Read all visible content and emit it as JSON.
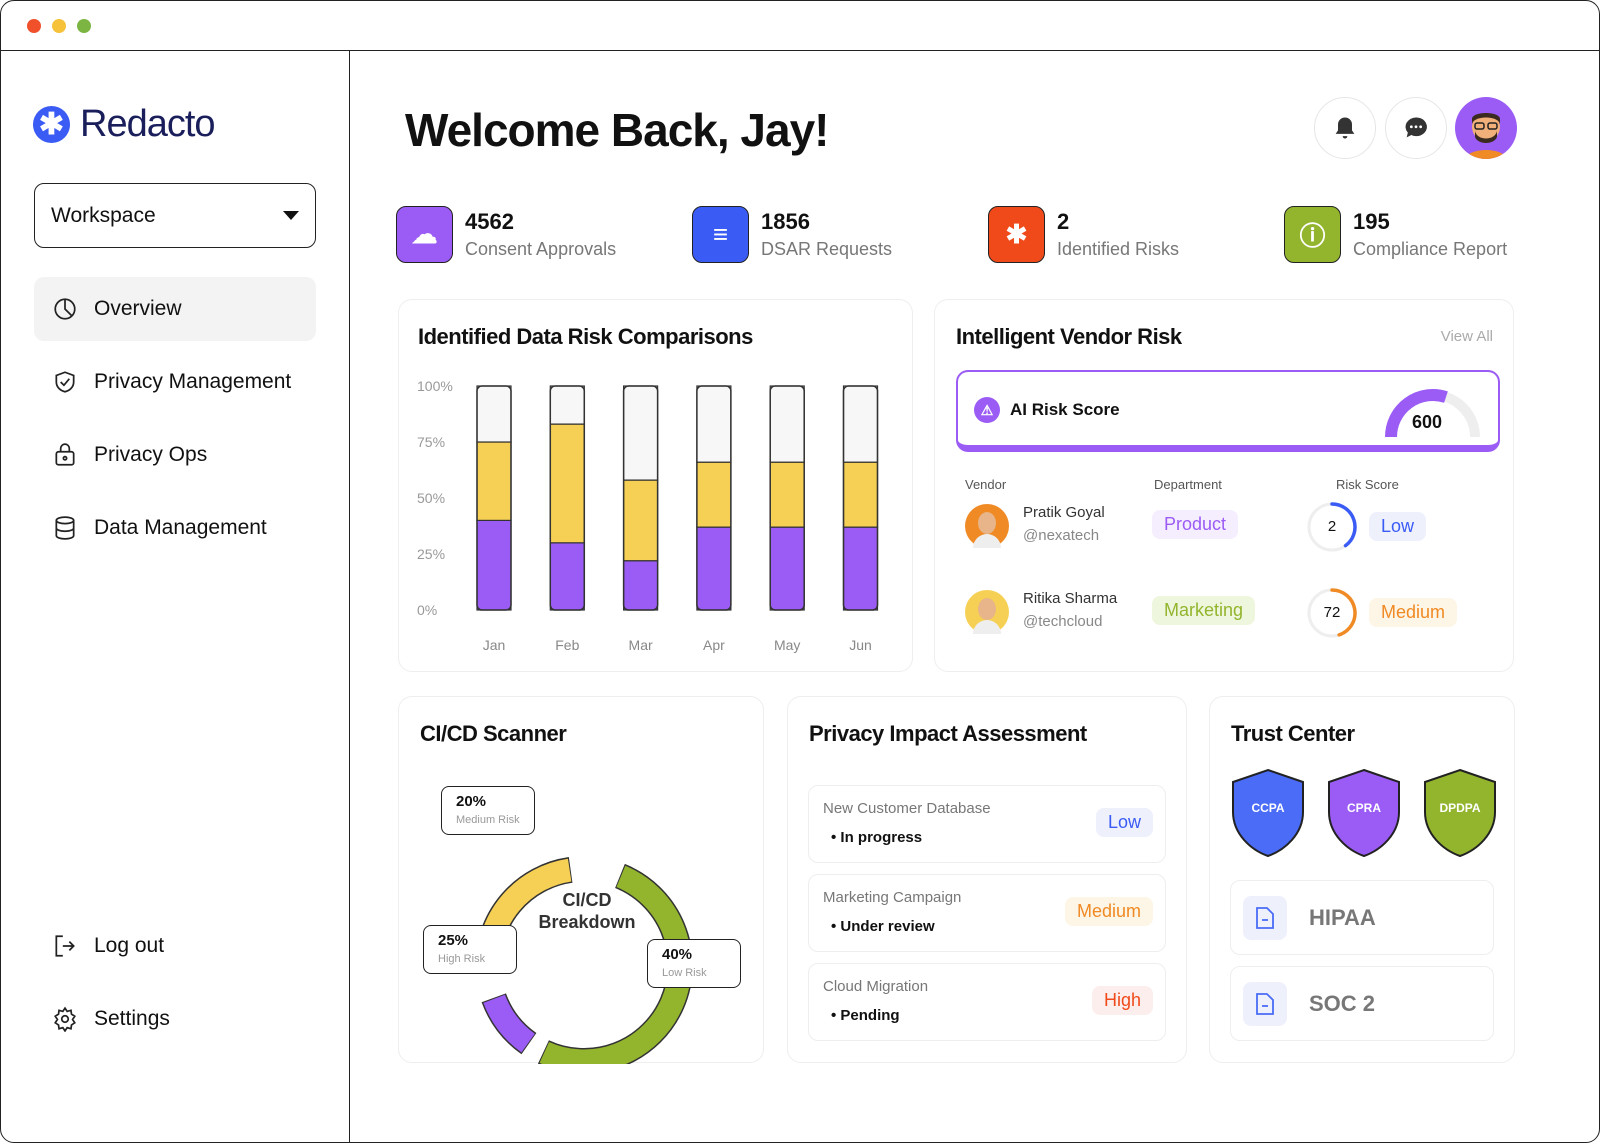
{
  "app": {
    "name": "Redacto"
  },
  "sidebar": {
    "workspace": "Workspace",
    "items": [
      {
        "label": "Overview",
        "icon": "overview-icon",
        "active": true
      },
      {
        "label": "Privacy Management",
        "icon": "shield-check-icon"
      },
      {
        "label": "Privacy Ops",
        "icon": "lock-bag-icon"
      },
      {
        "label": "Data Management",
        "icon": "database-icon"
      }
    ],
    "bottom": [
      {
        "label": "Log out",
        "icon": "logout-icon"
      },
      {
        "label": "Settings",
        "icon": "gear-icon"
      }
    ]
  },
  "header": {
    "welcome": "Welcome Back, Jay!"
  },
  "stats": [
    {
      "value": "4562",
      "label": "Consent Approvals",
      "color": "#9b5cf5",
      "icon": "cloud-check-icon"
    },
    {
      "value": "1856",
      "label": "DSAR Requests",
      "color": "#3b5bf5",
      "icon": "document-list-icon"
    },
    {
      "value": "2",
      "label": "Identified Risks",
      "color": "#f04a1a",
      "icon": "asterisk-icon"
    },
    {
      "value": "195",
      "label": "Compliance Report",
      "color": "#93b52e",
      "icon": "info-icon"
    }
  ],
  "risk_chart": {
    "title": "Identified Data Risk Comparisons"
  },
  "chart_data": [
    {
      "type": "bar",
      "stacked": true,
      "title": "Identified Data Risk Comparisons",
      "categories": [
        "Jan",
        "Feb",
        "Mar",
        "Apr",
        "May",
        "Jun"
      ],
      "yticks": [
        "0%",
        "25%",
        "50%",
        "75%",
        "100%"
      ],
      "ylim": [
        0,
        100
      ],
      "series": [
        {
          "color": "#9b5cf5",
          "values": [
            40,
            30,
            22,
            37,
            37,
            37
          ]
        },
        {
          "color": "#f6d055",
          "values": [
            35,
            53,
            36,
            29,
            29,
            29
          ]
        },
        {
          "color": "#f7f7f7",
          "values": [
            25,
            17,
            42,
            34,
            34,
            34
          ]
        }
      ]
    },
    {
      "type": "pie",
      "donut": true,
      "center_label": "CI/CD Breakdown",
      "slices": [
        {
          "label": "Low Risk",
          "value": 40,
          "display": "40%",
          "color": "#93b52e"
        },
        {
          "label": "High Risk",
          "value": 25,
          "display": "25%",
          "color": "#9b5cf5"
        },
        {
          "label": "Medium Risk",
          "value": 20,
          "display": "20%",
          "color": "#f6d055"
        }
      ]
    }
  ],
  "vendor": {
    "title": "Intelligent Vendor Risk",
    "view_all": "View All",
    "ai_label": "AI Risk Score",
    "ai_score": "600",
    "ai_fraction": 0.6,
    "headers": [
      "Vendor",
      "Department",
      "Risk Score"
    ],
    "rows": [
      {
        "name": "Pratik Goyal",
        "handle": "@nexatech",
        "dept": "Product",
        "score": "2",
        "fraction": 0.4,
        "level": "Low",
        "color": "#3b5bf5"
      },
      {
        "name": "Ritika Sharma",
        "handle": "@techcloud",
        "dept": "Marketing",
        "score": "72",
        "fraction": 0.45,
        "level": "Medium",
        "color": "#f08a24"
      }
    ]
  },
  "cicd": {
    "title": "CI/CD Scanner",
    "center1": "CI/CD",
    "center2": "Breakdown"
  },
  "pia": {
    "title": "Privacy Impact Assessment",
    "items": [
      {
        "name": "New Customer Database",
        "status": "In progress",
        "level": "Low"
      },
      {
        "name": "Marketing Campaign",
        "status": "Under review",
        "level": "Medium"
      },
      {
        "name": "Cloud Migration",
        "status": "Pending",
        "level": "High"
      }
    ]
  },
  "trust": {
    "title": "Trust Center",
    "badges": [
      {
        "label": "CCPA",
        "color": "#4a6cf7"
      },
      {
        "label": "CPRA",
        "color": "#9b5cf5"
      },
      {
        "label": "DPDPA",
        "color": "#93b52e"
      }
    ],
    "certs": [
      "HIPAA",
      "SOC 2"
    ]
  }
}
